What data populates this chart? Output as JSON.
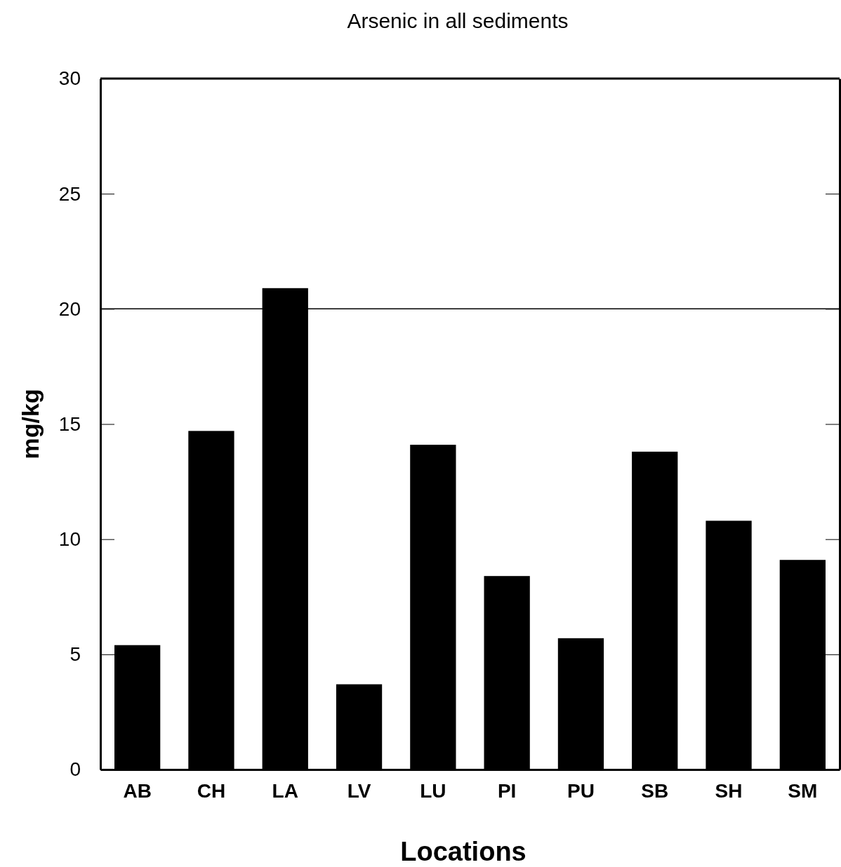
{
  "chart_data": {
    "type": "bar",
    "title": "Arsenic in all sediments",
    "xlabel": "Locations",
    "ylabel": "mg/kg",
    "categories": [
      "AB",
      "CH",
      "LA",
      "LV",
      "LU",
      "PI",
      "PU",
      "SB",
      "SH",
      "SM"
    ],
    "values": [
      5.4,
      14.7,
      20.9,
      3.7,
      14.1,
      8.4,
      5.7,
      13.8,
      10.8,
      9.1
    ],
    "color": "#000000",
    "ylim": [
      0,
      30
    ],
    "yticks": [
      0,
      5,
      10,
      15,
      20,
      25,
      30
    ],
    "grid": false,
    "ref_lines": [
      {
        "axis": "y",
        "value": 20,
        "color": "#000000"
      }
    ]
  }
}
